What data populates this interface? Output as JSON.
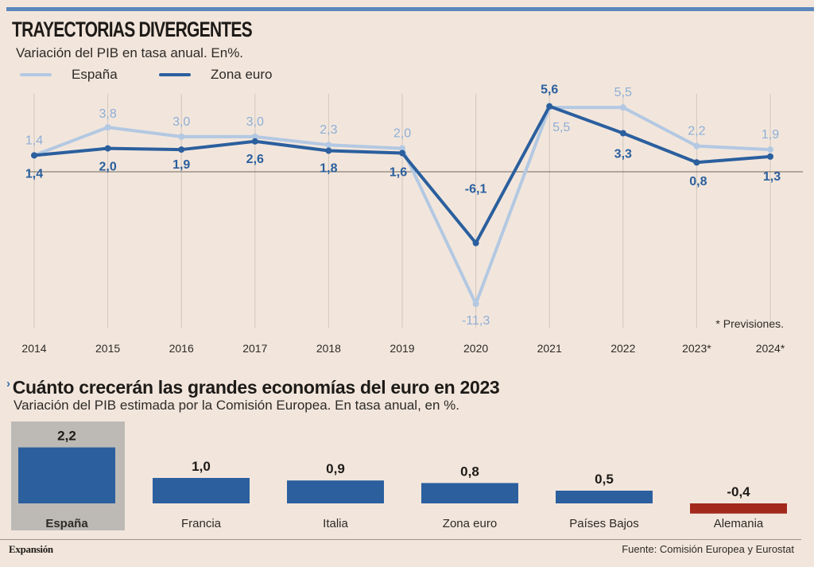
{
  "chart_data": [
    {
      "type": "line",
      "title": "TRAYECTORIAS DIVERGENTES",
      "subtitle": "Variación del PIB en tasa anual. En%.",
      "xlabel": "",
      "ylabel": "",
      "x": [
        "2014",
        "2015",
        "2016",
        "2017",
        "2018",
        "2019",
        "2020",
        "2021",
        "2022",
        "2023*",
        "2024*"
      ],
      "ylim": [
        -12,
        7
      ],
      "grid": "vertical",
      "legend_position": "top-left",
      "note": "* Previsiones.",
      "series": [
        {
          "name": "España",
          "color": "#b3c8e2",
          "values": [
            1.4,
            3.8,
            3.0,
            3.0,
            2.3,
            2.0,
            -11.3,
            5.5,
            5.5,
            2.2,
            1.9
          ],
          "labels": [
            "1,4",
            "3,8",
            "3,0",
            "3,0",
            "2,3",
            "2,0",
            "-11,3",
            "5,5",
            "5,5",
            "2,2",
            "1,9"
          ]
        },
        {
          "name": "Zona euro",
          "color": "#2b5f9e",
          "values": [
            1.4,
            2.0,
            1.9,
            2.6,
            1.8,
            1.6,
            -6.1,
            5.6,
            3.3,
            0.8,
            1.3
          ],
          "labels": [
            "1,4",
            "2,0",
            "1,9",
            "2,6",
            "1,8",
            "1,6",
            "-6,1",
            "5,6",
            "3,3",
            "0,8",
            "1,3"
          ]
        }
      ]
    },
    {
      "type": "bar",
      "title": "Cuánto crecerán las grandes economías del euro en 2023",
      "subtitle": "Variación del PIB estimada por la Comisión Europea. En tasa anual, en %.",
      "categories": [
        "España",
        "Francia",
        "Italia",
        "Zona euro",
        "Países Bajos",
        "Alemania"
      ],
      "values": [
        2.2,
        1.0,
        0.9,
        0.8,
        0.5,
        -0.4
      ],
      "labels": [
        "2,2",
        "1,0",
        "0,9",
        "0,8",
        "0,5",
        "-0,4"
      ],
      "highlight": "España",
      "colors": {
        "positive": "#2b5f9e",
        "negative": "#a3291c",
        "highlight_bg": "#bdbab6"
      }
    }
  ],
  "header": {
    "title": "TRAYECTORIAS DIVERGENTES",
    "subtitle": "Variación del PIB en tasa anual. En%.",
    "legend": [
      {
        "label": "España",
        "color": "#b3c8e2"
      },
      {
        "label": "Zona euro",
        "color": "#2b5f9e"
      }
    ]
  },
  "section2": {
    "arrow": "›",
    "title": "Cuánto crecerán las grandes economías del euro en 2023",
    "subtitle": "Variación del PIB estimada por la Comisión Europea. En tasa anual, en %."
  },
  "footer": {
    "brand": "Expansión",
    "source": "Fuente: Comisión Europea y Eurostat"
  }
}
